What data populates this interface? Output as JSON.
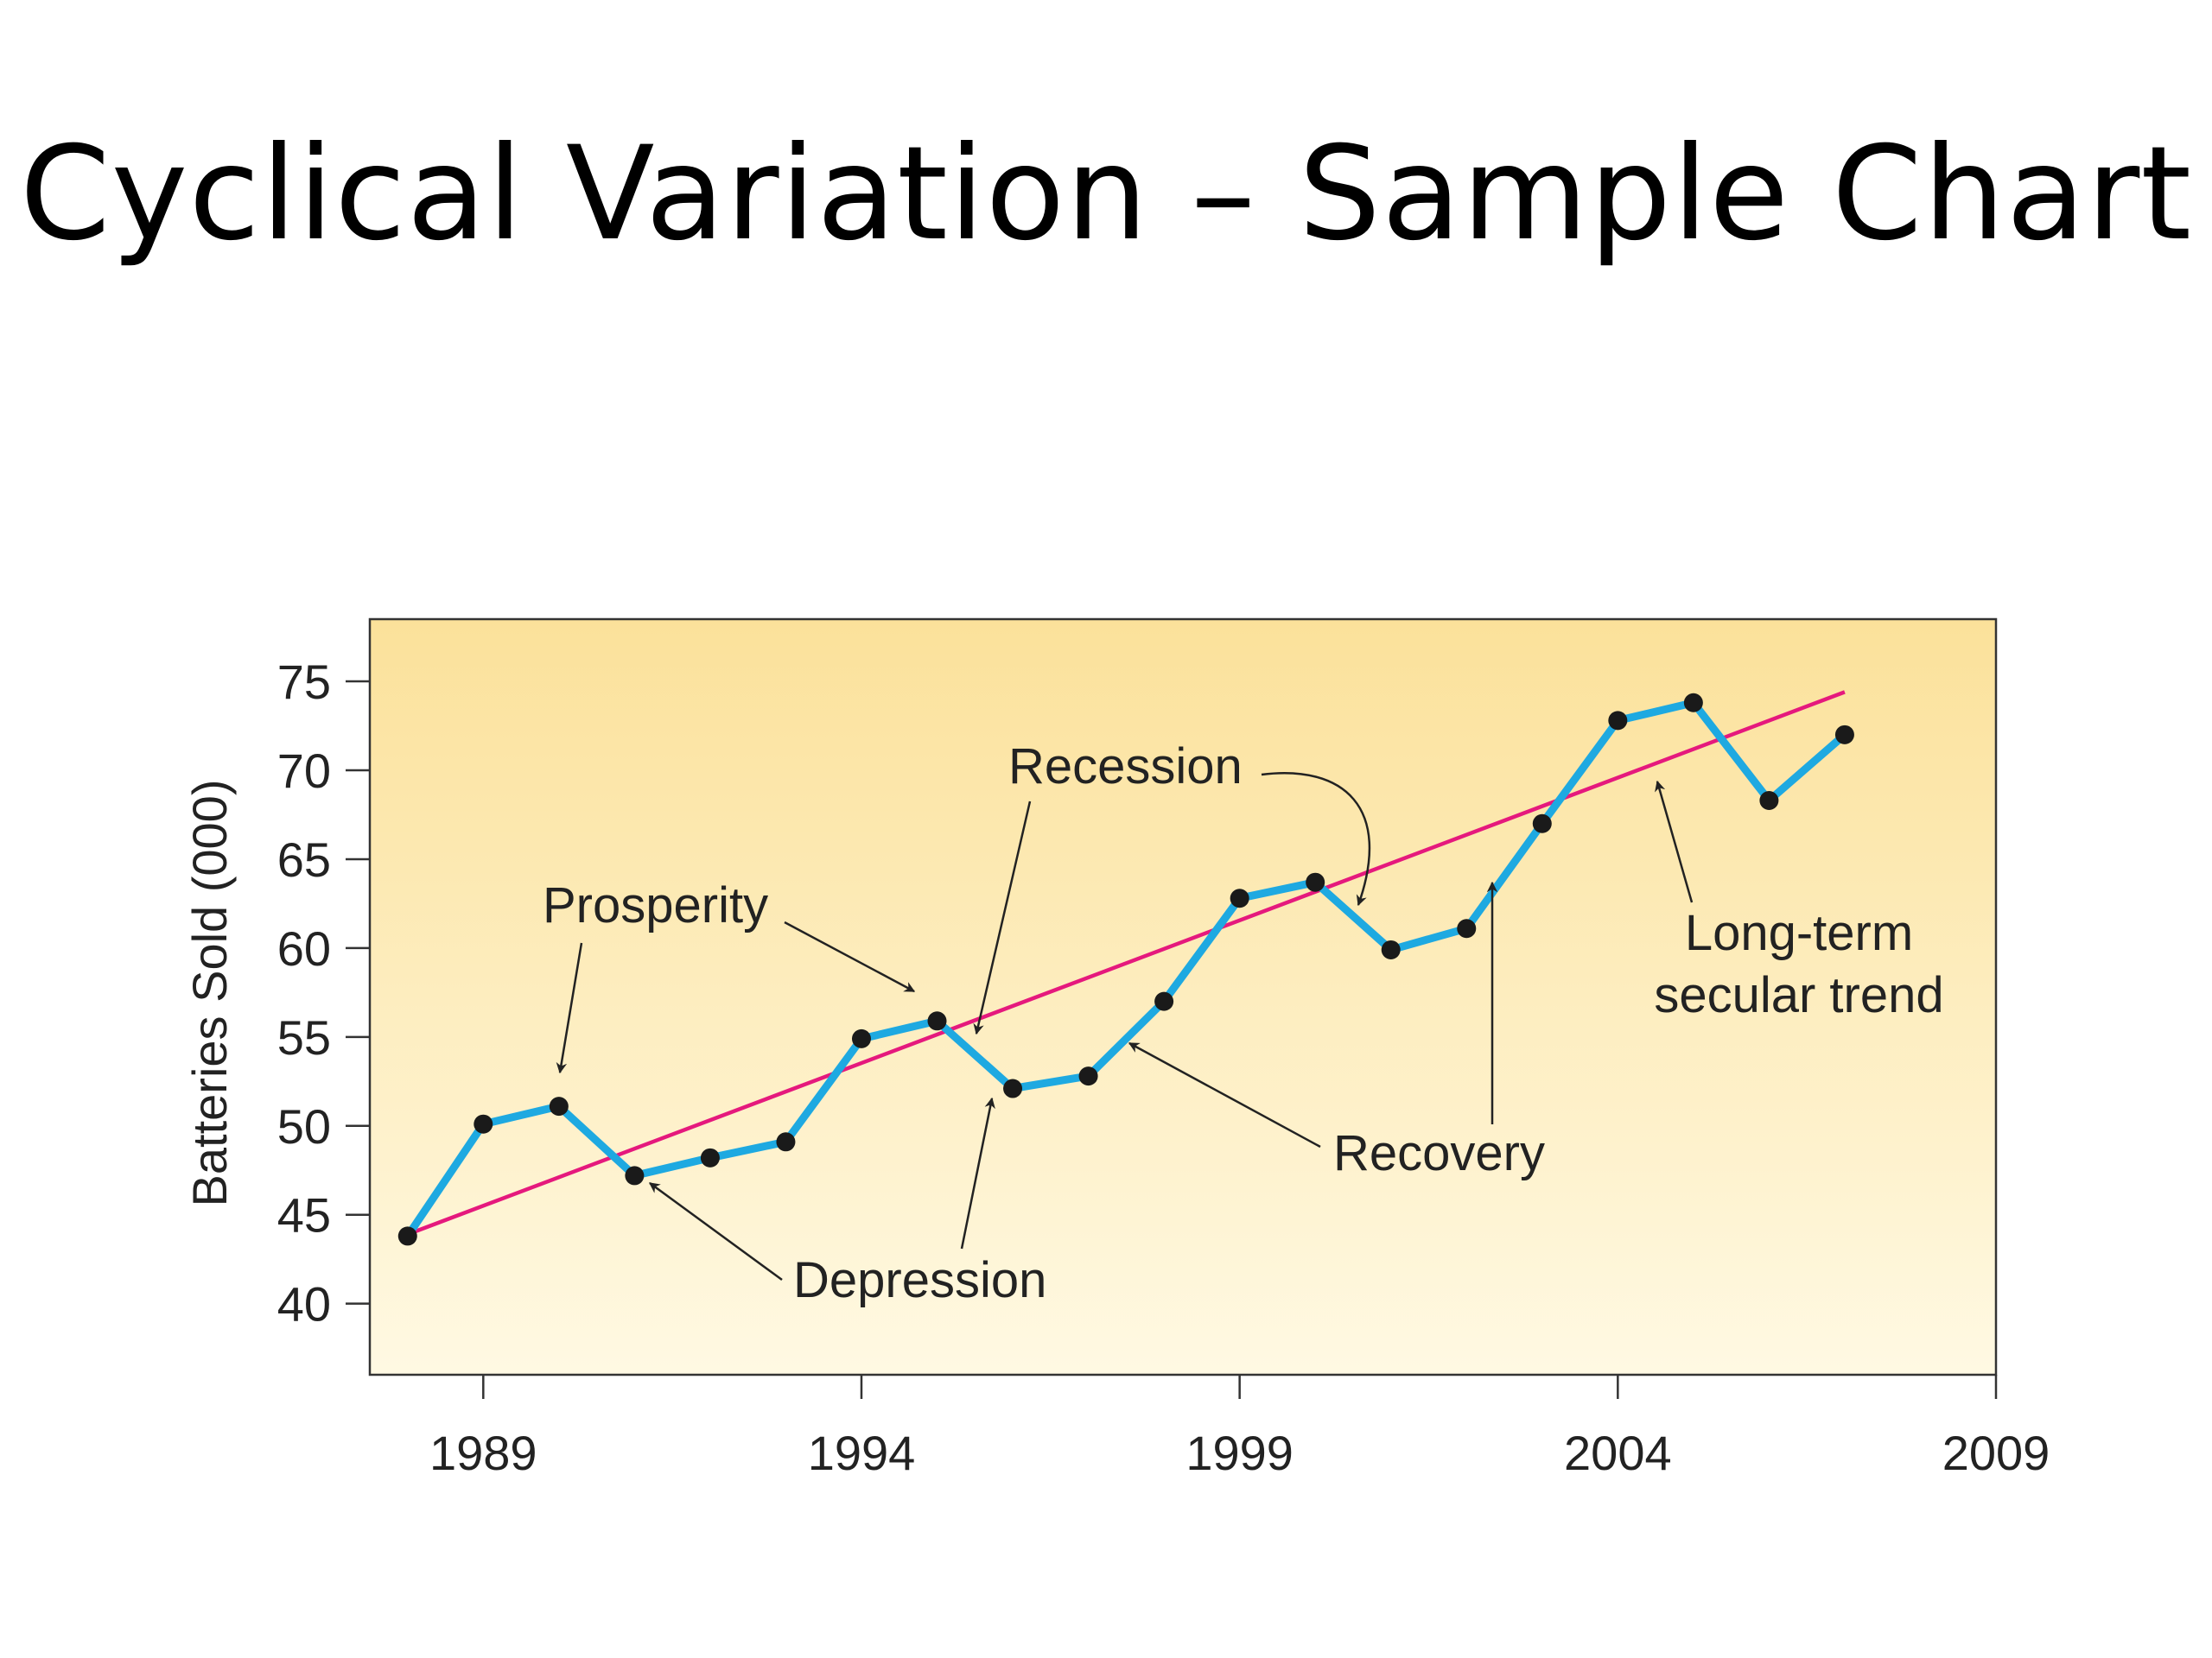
{
  "slide": {
    "title": "Cyclical Variation – Sample Chart"
  },
  "chart_data": {
    "type": "line",
    "title": "",
    "xlabel": "",
    "ylabel": "Batteries Sold (000)",
    "x_ticks": [
      1989,
      1994,
      1999,
      2004,
      2009
    ],
    "y_ticks": [
      40,
      45,
      50,
      55,
      60,
      65,
      70,
      75
    ],
    "xlim": [
      1987.5,
      2009
    ],
    "ylim": [
      36,
      78.5
    ],
    "grid": false,
    "series": [
      {
        "color": "#1ea9e1",
        "x": [
          1988,
          1989,
          1990,
          1991,
          1992,
          1993,
          1994,
          1995,
          1996,
          1997,
          1998,
          1999,
          2000,
          2001,
          2002,
          2003,
          2004,
          2005,
          2006,
          2007
        ],
        "y": [
          43.8,
          50.1,
          51.1,
          47.2,
          48.2,
          49.1,
          54.9,
          55.9,
          52.1,
          52.8,
          57.0,
          62.8,
          63.7,
          59.9,
          61.1,
          67.0,
          72.8,
          73.8,
          68.3,
          72.0
        ]
      }
    ],
    "trend": {
      "color": "#e5197d",
      "x": [
        1988,
        2007
      ],
      "y": [
        43.9,
        74.4
      ]
    },
    "background": {
      "top": "#fbe19a",
      "bottom": "#fff9e3"
    },
    "annotations": [
      {
        "text": "Prosperity"
      },
      {
        "text": "Recession"
      },
      {
        "text": "Depression"
      },
      {
        "text": "Recovery"
      },
      {
        "text": "Long-term"
      },
      {
        "text": "secular trend"
      }
    ]
  }
}
